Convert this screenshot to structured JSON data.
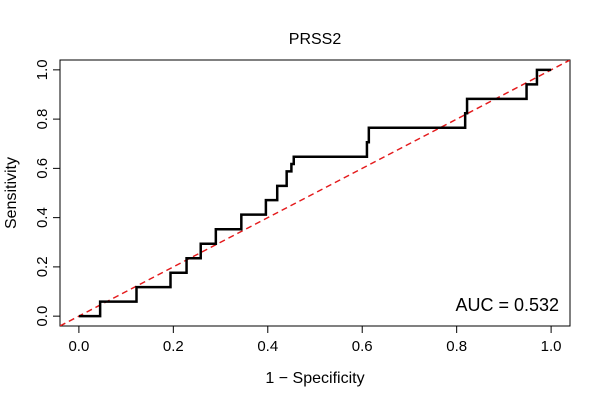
{
  "chart_data": {
    "type": "line",
    "title": "PRSS2",
    "xlabel": "1 − Specificity",
    "ylabel": "Sensitivity",
    "xlim": [
      -0.04,
      1.04
    ],
    "ylim": [
      -0.04,
      1.04
    ],
    "xticks": [
      0.0,
      0.2,
      0.4,
      0.6,
      0.8,
      1.0
    ],
    "xtick_labels": [
      "0.0",
      "0.2",
      "0.4",
      "0.6",
      "0.8",
      "1.0"
    ],
    "yticks": [
      0.0,
      0.2,
      0.4,
      0.6,
      0.8,
      1.0
    ],
    "ytick_labels": [
      "0.0",
      "0.2",
      "0.4",
      "0.6",
      "0.8",
      "1.0"
    ],
    "grid": false,
    "annotation": "AUC = 0.532",
    "series": [
      {
        "name": "ROC curve",
        "color": "#000000",
        "style": "solid",
        "x": [
          0.0,
          0.045,
          0.045,
          0.122,
          0.122,
          0.194,
          0.194,
          0.228,
          0.228,
          0.258,
          0.258,
          0.29,
          0.29,
          0.344,
          0.344,
          0.396,
          0.396,
          0.42,
          0.42,
          0.44,
          0.44,
          0.45,
          0.45,
          0.455,
          0.455,
          0.61,
          0.61,
          0.614,
          0.614,
          0.818,
          0.818,
          0.822,
          0.822,
          0.948,
          0.948,
          0.97,
          0.97,
          1.0
        ],
        "y": [
          0.0,
          0.0,
          0.059,
          0.059,
          0.118,
          0.118,
          0.176,
          0.176,
          0.235,
          0.235,
          0.294,
          0.294,
          0.353,
          0.353,
          0.412,
          0.412,
          0.471,
          0.471,
          0.529,
          0.529,
          0.588,
          0.588,
          0.618,
          0.618,
          0.647,
          0.647,
          0.706,
          0.706,
          0.765,
          0.765,
          0.824,
          0.824,
          0.882,
          0.882,
          0.941,
          0.941,
          1.0,
          1.0
        ]
      },
      {
        "name": "Reference diagonal",
        "color": "#e41a1c",
        "style": "dashed",
        "x": [
          -0.04,
          1.04
        ],
        "y": [
          -0.04,
          1.04
        ]
      }
    ]
  }
}
